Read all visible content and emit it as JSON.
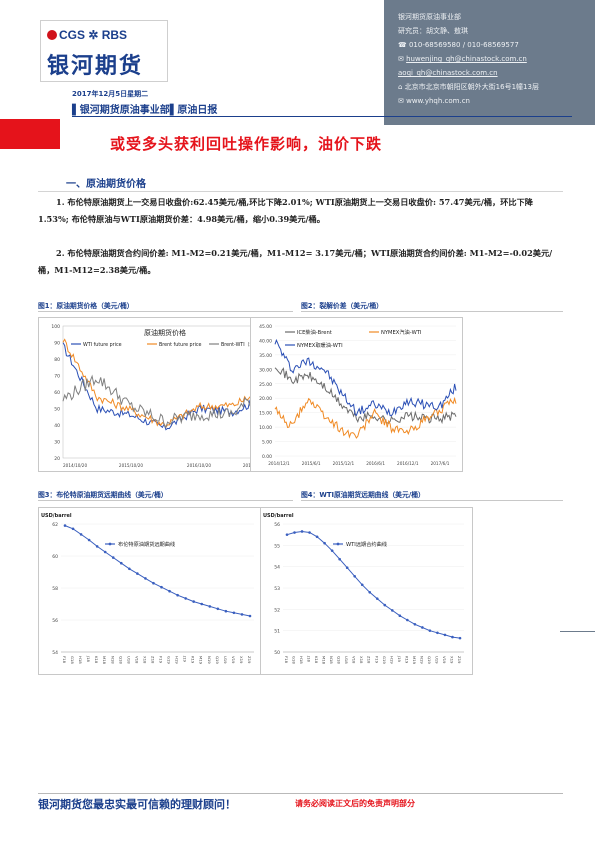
{
  "logo": {
    "brand_en": "CGS ✲ RBS",
    "brand_cn": "银河期货"
  },
  "contact": {
    "unit": "银河期货原油事业部",
    "researchers": "研究员：胡文静、敖琪",
    "phone": "010-68569580 / 010-68569577",
    "email1": "huwenjing_qh@chinastock.com.cn",
    "email2": "aoqi_qh@chinastock.com.cn",
    "address": "北京市北京市朝阳区朝外大街16号1幢13层",
    "website": "www.yhqh.com.cn"
  },
  "report": {
    "date": "2017年12月5日星期二",
    "department": "▌银河期货原油事业部▌原油日报",
    "headline": "或受多头获利回吐操作影响，油价下跌"
  },
  "section": {
    "title": "一、原油期货价格",
    "para1": "1. 布伦特原油期货上一交易日收盘价:62.45美元/桶,环比下降2.01%; WTI原油期货上一交易日收盘价: 57.47美元/桶，环比下降1.53%; 布伦特原油与WTI原油期货价差：4.98美元/桶，缩小0.39美元/桶。",
    "para2": "2. 布伦特原油期货合约间价差: M1-M2=0.21美元/桶，M1-M12= 3.17美元/桶；WTI原油期货合约间价差: M1-M2=-0.02美元/桶，M1-M12=2.38美元/桶。"
  },
  "figures": {
    "fig1_caption": "图1：原油期货价格（美元/桶）",
    "fig2_caption": "图2：裂解价差（美元/桶）",
    "fig3_caption": "图3：布伦特原油期货远期曲线（美元/桶）",
    "fig4_caption": "图4：WTI原油期货远期曲线（美元/桶）"
  },
  "chart_data": [
    {
      "id": "fig1",
      "type": "line",
      "title": "原油期货价格",
      "x": [
        "2014/10/20",
        "2015/03/20",
        "2015/10/20",
        "2016/03/20",
        "2016/10/20",
        "2017/03/20",
        "2017/10/23"
      ],
      "x_ticks": [
        "2014/10/20",
        "2015/10/20",
        "2016/10/20",
        "2017/10/23"
      ],
      "y_left_ticks": [
        "100",
        "90",
        "80",
        "70",
        "60",
        "50",
        "40",
        "30",
        "20"
      ],
      "y_right_ticks": [
        "14",
        "12",
        "10",
        "8",
        "6",
        "4",
        "2",
        "0",
        "-2",
        "-4"
      ],
      "ylim_left": [
        20,
        100
      ],
      "ylim_right": [
        -4,
        14
      ],
      "series": [
        {
          "name": "WTI future price",
          "axis": "left",
          "color": "#2a4fb5",
          "values": [
            88,
            50,
            46,
            38,
            50,
            48,
            57
          ]
        },
        {
          "name": "Brent future price",
          "axis": "left",
          "color": "#f08a24",
          "values": [
            92,
            57,
            49,
            40,
            51,
            52,
            62
          ]
        },
        {
          "name": "Brent-WTI（右）",
          "axis": "right",
          "color": "#808080",
          "values": [
            4,
            7,
            3,
            1,
            2,
            2,
            6
          ]
        }
      ]
    },
    {
      "id": "fig2",
      "type": "line",
      "title": "",
      "x": [
        "2014/12/1",
        "2015/3/1",
        "2015/6/1",
        "2015/9/1",
        "2015/12/1",
        "2016/3/1",
        "2016/6/1",
        "2016/9/1",
        "2016/12/1",
        "2017/3/1",
        "2017/6/1",
        "2017/9/1"
      ],
      "x_ticks": [
        "2014/12/1",
        "2015/6/1",
        "2015/12/1",
        "2016/6/1",
        "2016/12/1",
        "2017/6/1"
      ],
      "y_ticks": [
        "45.00",
        "40.00",
        "35.00",
        "30.00",
        "25.00",
        "20.00",
        "15.00",
        "10.00",
        "5.00",
        "0.00"
      ],
      "ylim": [
        0,
        45
      ],
      "series": [
        {
          "name": "ICE柴油-Brent",
          "color": "#6b6b6b",
          "values": [
            32,
            26,
            28,
            24,
            18,
            13,
            14,
            12,
            14,
            13,
            13,
            14
          ]
        },
        {
          "name": "NYMEX汽油-WTI",
          "color": "#f08a24",
          "values": [
            16,
            10,
            20,
            14,
            9,
            7,
            15,
            10,
            8,
            12,
            16,
            19
          ]
        },
        {
          "name": "NYMEX取暖油-WTI",
          "color": "#2a4fb5",
          "values": [
            40,
            30,
            33,
            30,
            22,
            15,
            18,
            15,
            19,
            18,
            17,
            24
          ]
        }
      ]
    },
    {
      "id": "fig3",
      "type": "line",
      "unit_label": "USD/barrel",
      "legend": "布伦特原油期货远期曲线",
      "y_ticks": [
        "62",
        "60",
        "58",
        "56",
        "54"
      ],
      "ylim": [
        54,
        62
      ],
      "x": [
        "F18",
        "G18",
        "H18",
        "J18",
        "K18",
        "M18",
        "N18",
        "Q18",
        "U18",
        "V18",
        "X18",
        "Z18",
        "F19",
        "G19",
        "H19",
        "J19",
        "K19",
        "M19",
        "N19",
        "Q19",
        "U19",
        "V19",
        "X19",
        "Z19"
      ],
      "values": [
        61.9,
        61.7,
        61.35,
        61.0,
        60.6,
        60.25,
        59.9,
        59.55,
        59.2,
        58.9,
        58.6,
        58.3,
        58.05,
        57.8,
        57.55,
        57.35,
        57.15,
        57.0,
        56.85,
        56.7,
        56.55,
        56.45,
        56.35,
        56.25
      ]
    },
    {
      "id": "fig4",
      "type": "line",
      "unit_label": "USD/barrel",
      "legend": "WTI远期合约曲线",
      "y_ticks": [
        "56",
        "55",
        "54",
        "53",
        "52",
        "51",
        "50"
      ],
      "ylim": [
        50,
        56
      ],
      "x": [
        "F18",
        "G18",
        "H18",
        "J18",
        "K18",
        "M18",
        "N18",
        "Q18",
        "U18",
        "V18",
        "X18",
        "Z18",
        "F19",
        "G19",
        "H19",
        "J19",
        "K19",
        "M19",
        "N19",
        "Q19",
        "U19",
        "V19",
        "X19",
        "Z19"
      ],
      "values": [
        55.5,
        55.6,
        55.65,
        55.6,
        55.4,
        55.1,
        54.75,
        54.35,
        53.95,
        53.55,
        53.15,
        52.8,
        52.5,
        52.2,
        51.95,
        51.7,
        51.5,
        51.3,
        51.15,
        51.0,
        50.9,
        50.8,
        50.7,
        50.65
      ]
    }
  ],
  "footer": {
    "slogan": "银河期货您最忠实最可信赖的理财顾问！",
    "disclaimer": "请务必阅读正文后的免责声明部分"
  }
}
